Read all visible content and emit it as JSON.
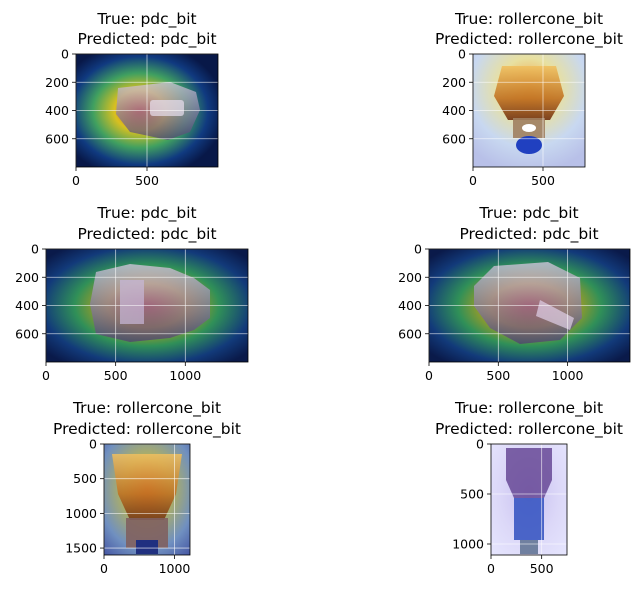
{
  "figure": {
    "background": "#ffffff"
  },
  "chart_data": [
    {
      "type": "heatmap",
      "image_label": "drill bit with Grad-CAM heatmap",
      "true_label": "pdc_bit",
      "predicted_label": "pdc_bit",
      "title_lines": [
        "True: pdc_bit",
        "Predicted: pdc_bit"
      ],
      "xlim": [
        0,
        1000
      ],
      "ylim": [
        800,
        0
      ],
      "xticks": [
        0,
        500
      ],
      "yticks": [
        0,
        200,
        400,
        600
      ],
      "grid": true
    },
    {
      "type": "heatmap",
      "image_label": "drill bit with Grad-CAM heatmap",
      "true_label": "rollercone_bit",
      "predicted_label": "rollercone_bit",
      "title_lines": [
        "True: rollercone_bit",
        "Predicted: rollercone_bit"
      ],
      "xlim": [
        0,
        800
      ],
      "ylim": [
        800,
        0
      ],
      "xticks": [
        0,
        500
      ],
      "yticks": [
        0,
        200,
        400,
        600
      ],
      "grid": true
    },
    {
      "type": "heatmap",
      "image_label": "drill bit with Grad-CAM heatmap",
      "true_label": "pdc_bit",
      "predicted_label": "pdc_bit",
      "title_lines": [
        "True: pdc_bit",
        "Predicted: pdc_bit"
      ],
      "xlim": [
        0,
        1450
      ],
      "ylim": [
        800,
        0
      ],
      "xticks": [
        0,
        500,
        1000
      ],
      "yticks": [
        0,
        200,
        400,
        600
      ],
      "grid": true
    },
    {
      "type": "heatmap",
      "image_label": "drill bit with Grad-CAM heatmap",
      "true_label": "pdc_bit",
      "predicted_label": "pdc_bit",
      "title_lines": [
        "True: pdc_bit",
        "Predicted: pdc_bit"
      ],
      "xlim": [
        0,
        1450
      ],
      "ylim": [
        800,
        0
      ],
      "xticks": [
        0,
        500,
        1000
      ],
      "yticks": [
        0,
        200,
        400,
        600
      ],
      "grid": true
    },
    {
      "type": "heatmap",
      "image_label": "drill bit with Grad-CAM heatmap",
      "true_label": "rollercone_bit",
      "predicted_label": "rollercone_bit",
      "title_lines": [
        "True: rollercone_bit",
        "Predicted: rollercone_bit"
      ],
      "xlim": [
        0,
        1220
      ],
      "ylim": [
        1600,
        0
      ],
      "xticks": [
        0,
        1000
      ],
      "yticks": [
        0,
        500,
        1000,
        1500
      ],
      "grid": true
    },
    {
      "type": "heatmap",
      "image_label": "drill bit with Grad-CAM heatmap",
      "true_label": "rollercone_bit",
      "predicted_label": "rollercone_bit",
      "title_lines": [
        "True: rollercone_bit",
        "Predicted: rollercone_bit"
      ],
      "xlim": [
        0,
        750
      ],
      "ylim": [
        1110,
        0
      ],
      "xticks": [
        0,
        500
      ],
      "yticks": [
        0,
        500,
        1000
      ],
      "grid": true
    }
  ]
}
